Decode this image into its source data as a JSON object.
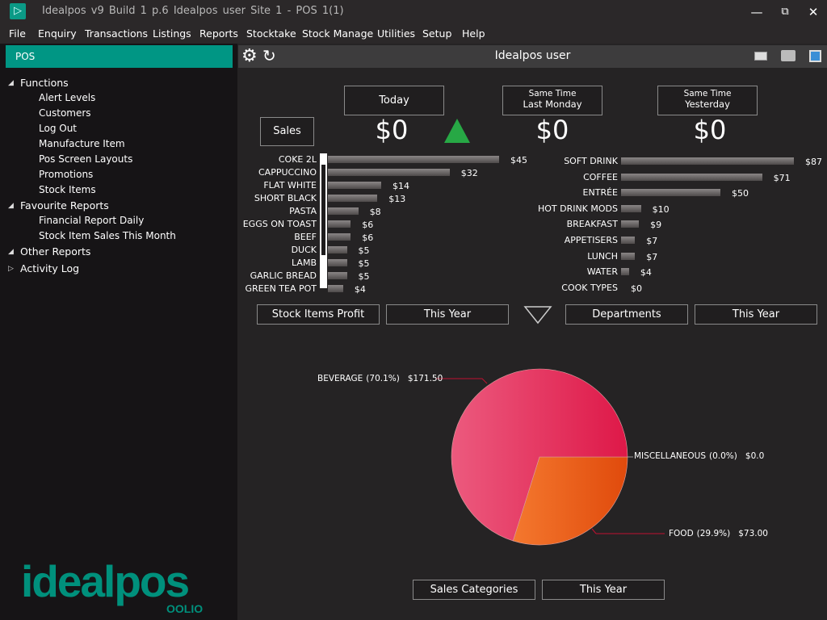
{
  "titlebar": {
    "title": "Idealpos v9 Build 1 p.6   Idealpos user   Site 1 - POS 1(1)",
    "minimize": "—",
    "restore": "⧉",
    "close": "✕"
  },
  "menu": [
    "File",
    "Enquiry",
    "Transactions",
    "Listings",
    "Reports",
    "Stocktake",
    "Stock Manage",
    "Utilities",
    "Setup",
    "Help"
  ],
  "sidebar": {
    "header": "POS",
    "groups": [
      {
        "label": "Functions",
        "expanded": true,
        "items": [
          "Alert Levels",
          "Customers",
          "Log Out",
          "Manufacture Item",
          "Pos Screen Layouts",
          "Promotions",
          "Stock Items"
        ]
      },
      {
        "label": "Favourite Reports",
        "expanded": true,
        "items": [
          "Financial Report Daily",
          "Stock Item Sales This Month"
        ]
      },
      {
        "label": "Other Reports",
        "expanded": true,
        "items": []
      },
      {
        "label": "Activity Log",
        "expanded": false,
        "items": []
      }
    ],
    "logo": "idealpos",
    "logo_sub": "OOLIO"
  },
  "main": {
    "title": "Idealpos user",
    "sales_label": "Sales",
    "today": {
      "label": "Today",
      "value": "$0"
    },
    "last_monday": {
      "line1": "Same Time",
      "line2": "Last Monday",
      "value": "$0"
    },
    "yesterday": {
      "line1": "Same Time",
      "line2": "Yesterday",
      "value": "$0"
    },
    "trend": "up",
    "left_selectors": [
      "Stock Items Profit",
      "This Year"
    ],
    "right_selectors": [
      "Departments",
      "This Year"
    ],
    "pie_selectors": [
      "Sales Categories",
      "This Year"
    ]
  },
  "chart_data": [
    {
      "type": "bar",
      "orientation": "horizontal",
      "title": "Stock Items Profit",
      "categories": [
        "COKE 2L",
        "CAPPUCCINO",
        "FLAT WHITE",
        "SHORT BLACK",
        "PASTA",
        "EGGS ON TOAST",
        "BEEF",
        "DUCK",
        "LAMB",
        "GARLIC BREAD",
        "GREEN TEA POT"
      ],
      "values": [
        45,
        32,
        14,
        13,
        8,
        6,
        6,
        5,
        5,
        5,
        4
      ],
      "labels": [
        "$45",
        "$32",
        "$14",
        "$13",
        "$8",
        "$6",
        "$6",
        "$5",
        "$5",
        "$5",
        "$4"
      ]
    },
    {
      "type": "bar",
      "orientation": "horizontal",
      "title": "Departments",
      "categories": [
        "SOFT DRINK",
        "COFFEE",
        "ENTRÉE",
        "HOT DRINK MODS",
        "BREAKFAST",
        "APPETISERS",
        "LUNCH",
        "WATER",
        "COOK TYPES"
      ],
      "values": [
        87,
        71,
        50,
        10,
        9,
        7,
        7,
        4,
        0
      ],
      "labels": [
        "$87",
        "$71",
        "$50",
        "$10",
        "$9",
        "$7",
        "$7",
        "$4",
        "$0"
      ]
    },
    {
      "type": "pie",
      "title": "Sales Categories",
      "slices": [
        {
          "name": "BEVERAGE",
          "pct": "(70.1%)",
          "value": 171.5,
          "label": "$171.50",
          "color": "#e8416a"
        },
        {
          "name": "FOOD",
          "pct": "(29.9%)",
          "value": 73.0,
          "label": "$73.00",
          "color": "#f0601e"
        },
        {
          "name": "MISCELLANEOUS",
          "pct": "(0.0%)",
          "value": 0,
          "label": "$0.0",
          "color": "#888888"
        }
      ]
    }
  ]
}
